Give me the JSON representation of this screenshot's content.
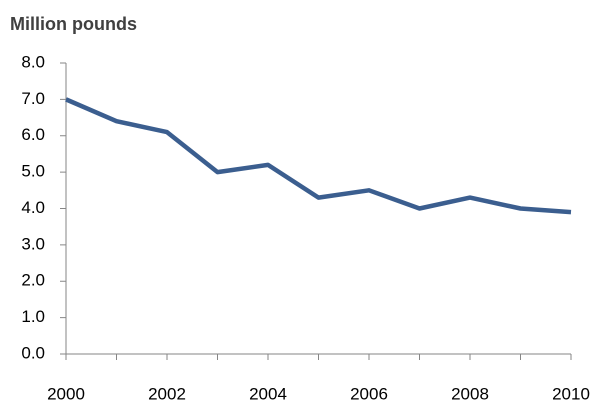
{
  "chart_data": {
    "type": "line",
    "title": "Million pounds",
    "x": [
      2000,
      2001,
      2002,
      2003,
      2004,
      2005,
      2006,
      2007,
      2008,
      2009,
      2010
    ],
    "series": [
      {
        "name": null,
        "color": "#3b5e8f",
        "values": [
          7.0,
          6.4,
          6.1,
          5.0,
          5.2,
          4.3,
          4.5,
          4.0,
          4.3,
          4.0,
          3.9
        ]
      }
    ],
    "xlim": [
      2000,
      2010
    ],
    "xticks": [
      2000,
      2002,
      2004,
      2006,
      2008,
      2010
    ],
    "ylim": [
      0,
      8
    ],
    "yticks": [
      {
        "value": 0,
        "label": "0.0"
      },
      {
        "value": 1,
        "label": "1.0"
      },
      {
        "value": 2,
        "label": "2.0"
      },
      {
        "value": 3,
        "label": "3.0"
      },
      {
        "value": 4,
        "label": "4.0"
      },
      {
        "value": 5,
        "label": "5.0"
      },
      {
        "value": 6,
        "label": "6.0"
      },
      {
        "value": 7,
        "label": "7.0"
      },
      {
        "value": 8,
        "label": "8.0"
      }
    ],
    "grid": false
  }
}
